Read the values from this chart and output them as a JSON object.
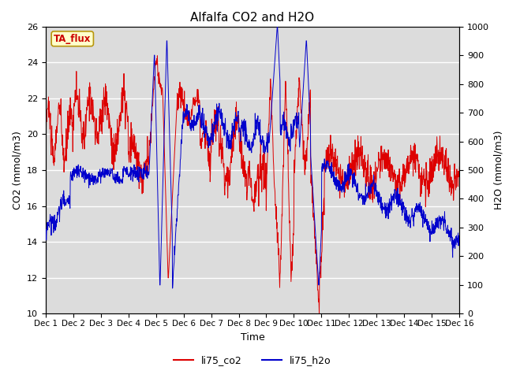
{
  "title": "Alfalfa CO2 and H2O",
  "xlabel": "Time",
  "ylabel_left": "CO2 (mmol/m3)",
  "ylabel_right": "H2O (mmol/m3)",
  "ylim_left": [
    10,
    26
  ],
  "ylim_right": [
    0,
    1000
  ],
  "yticks_left": [
    10,
    12,
    14,
    16,
    18,
    20,
    22,
    24,
    26
  ],
  "yticks_right": [
    0,
    100,
    200,
    300,
    400,
    500,
    600,
    700,
    800,
    900,
    1000
  ],
  "xtick_labels": [
    "Dec 1",
    "Dec 2",
    "Dec 3",
    "Dec 4",
    "Dec 5",
    "Dec 6",
    "Dec 7",
    "Dec 8",
    "Dec 9",
    "Dec 10",
    "Dec 11",
    "Dec 12",
    "Dec 13",
    "Dec 14",
    "Dec 15",
    "Dec 16"
  ],
  "annotation_text": "TA_flux",
  "annotation_color": "#cc0000",
  "annotation_bg": "#ffffcc",
  "bg_color": "#dcdcdc",
  "line_co2_color": "#dd0000",
  "line_h2o_color": "#0000cc",
  "legend_labels": [
    "li75_co2",
    "li75_h2o"
  ],
  "title_fontsize": 11,
  "axis_fontsize": 9,
  "tick_fontsize": 8,
  "legend_fontsize": 9
}
